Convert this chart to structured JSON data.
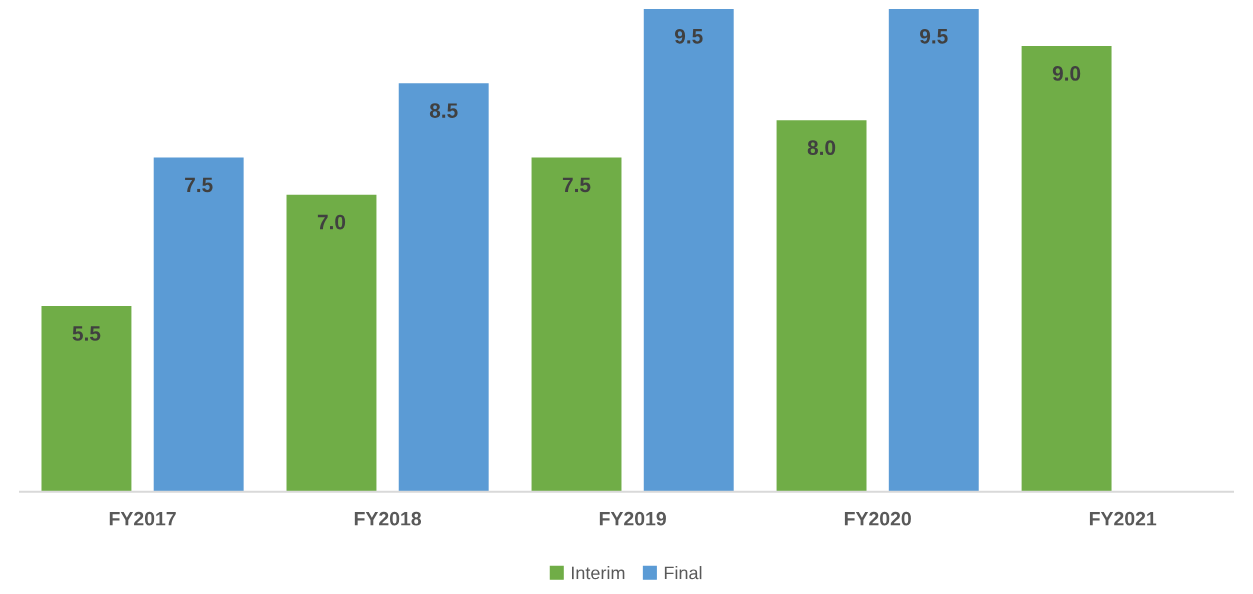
{
  "chart_data": {
    "type": "bar",
    "categories": [
      "FY2017",
      "FY2018",
      "FY2019",
      "FY2020",
      "FY2021"
    ],
    "series": [
      {
        "name": "Interim",
        "color": "#70ad47",
        "values": [
          5.5,
          7.0,
          7.5,
          8.0,
          9.0
        ],
        "value_labels": [
          "5.5",
          "7.0",
          "7.5",
          "8.0",
          "9.0"
        ]
      },
      {
        "name": "Final",
        "color": "#5b9bd5",
        "values": [
          7.5,
          8.5,
          9.5,
          9.5,
          null
        ],
        "value_labels": [
          "7.5",
          "8.5",
          "9.5",
          "9.5",
          null
        ]
      }
    ],
    "ylim": [
      3,
      9.5
    ],
    "tick_labels": "x",
    "grid": false,
    "legend": "bottom"
  }
}
